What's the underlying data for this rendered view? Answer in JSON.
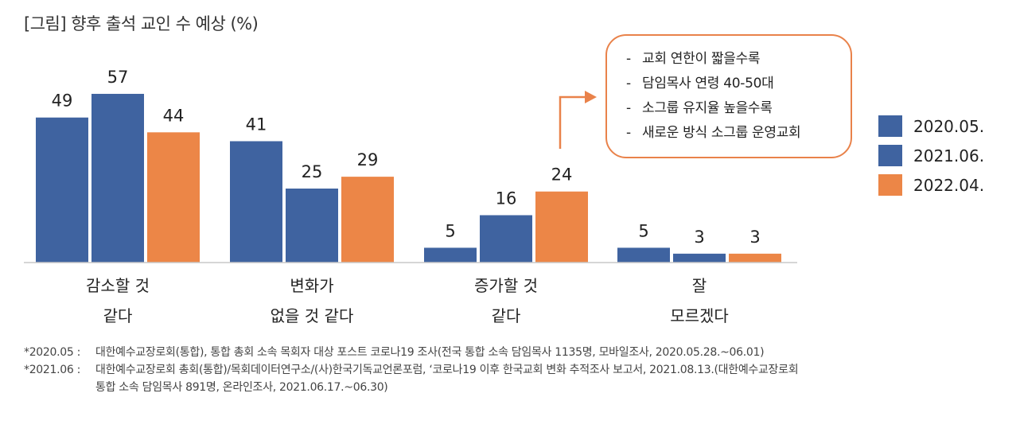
{
  "title": "[그림] 향후 출석 교인 수 예상 (%)",
  "chart_data": {
    "type": "bar",
    "title": "[그림] 향후 출석 교인 수 예상 (%)",
    "categories": [
      [
        "감소할 것",
        "같다"
      ],
      [
        "변화가",
        "없을 것 같다"
      ],
      [
        "증가할 것",
        "같다"
      ],
      [
        "잘",
        "모르겠다"
      ]
    ],
    "series": [
      {
        "name": "2020.05.",
        "color": "#3f63a0",
        "values": [
          49,
          41,
          5,
          5
        ]
      },
      {
        "name": "2021.06.",
        "color": "#3f63a0",
        "values": [
          57,
          25,
          16,
          3
        ]
      },
      {
        "name": "2022.04.",
        "color": "#ec8647",
        "values": [
          44,
          29,
          24,
          3
        ]
      }
    ],
    "ylim": [
      0,
      60
    ],
    "grid": false,
    "legend_position": "right"
  },
  "callout": {
    "items": [
      "교회 연한이 짧을수록",
      "담임목사 연령 40-50대",
      "소그룹 유지율 높을수록",
      "새로운 방식 소그룹 운영교회"
    ],
    "dash": "-",
    "border_color": "#e9824a"
  },
  "notes": [
    {
      "key": "*2020.05 :",
      "text": "대한예수교장로회(통합), 통합 총회 소속 목회자 대상 포스트 코로나19 조사(전국 통합 소속 담임목사 1135명, 모바일조사, 2020.05.28.~06.01)"
    },
    {
      "key": "*2021.06 :",
      "text": "대한예수교장로회 총회(통합)/목회데이터연구소/(사)한국기독교언론포럼, ‘코로나19 이후 한국교회 변화 추적조사 보고서, 2021.08.13.(대한예수교장로회",
      "continuation": "통합 소속 담임목사 891명, 온라인조사, 2021.06.17.~06.30)"
    }
  ]
}
